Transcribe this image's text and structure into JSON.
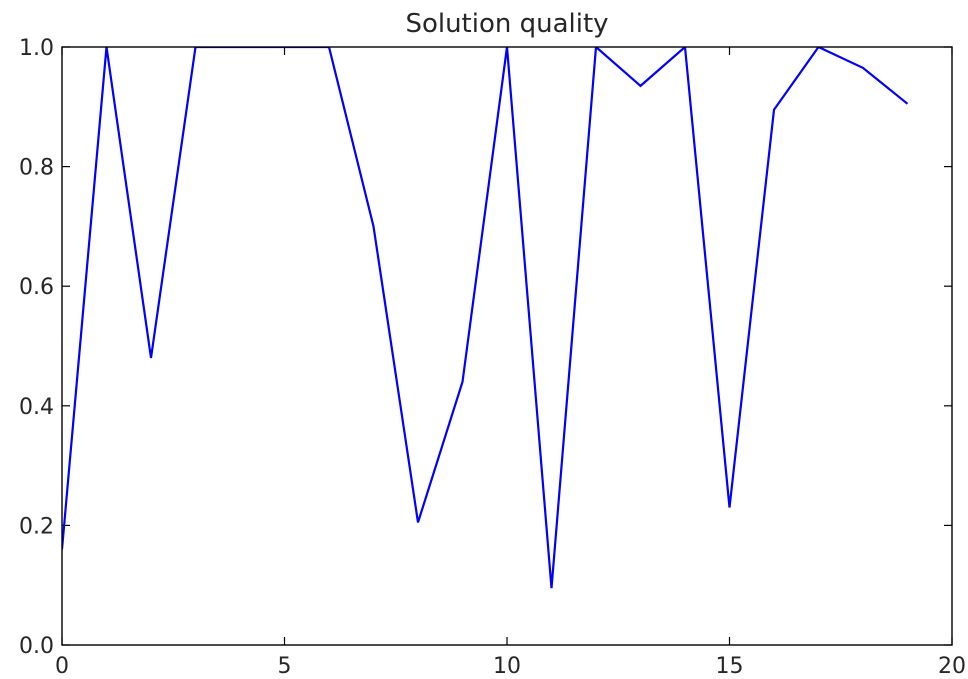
{
  "chart_data": {
    "type": "line",
    "title": "Solution quality",
    "xlabel": "",
    "ylabel": "",
    "xlim": [
      0,
      20
    ],
    "ylim": [
      0.0,
      1.0
    ],
    "x_ticks": [
      0,
      5,
      10,
      15,
      20
    ],
    "x_tick_labels": [
      "0",
      "5",
      "10",
      "15",
      "20"
    ],
    "y_ticks": [
      0.0,
      0.2,
      0.4,
      0.6,
      0.8,
      1.0
    ],
    "y_tick_labels": [
      "0.0",
      "0.2",
      "0.4",
      "0.6",
      "0.8",
      "1.0"
    ],
    "grid": false,
    "legend": "none",
    "series": [
      {
        "color": "#0000ff",
        "x": [
          0,
          1,
          2,
          3,
          4,
          5,
          6,
          7,
          8,
          9,
          10,
          11,
          12,
          13,
          14,
          15,
          16,
          17,
          18,
          19
        ],
        "values": [
          0.16,
          1.0,
          0.48,
          1.0,
          1.0,
          1.0,
          1.0,
          0.7,
          0.205,
          0.44,
          1.0,
          0.095,
          1.0,
          0.935,
          1.0,
          0.23,
          0.895,
          1.0,
          0.965,
          0.905
        ]
      }
    ]
  }
}
